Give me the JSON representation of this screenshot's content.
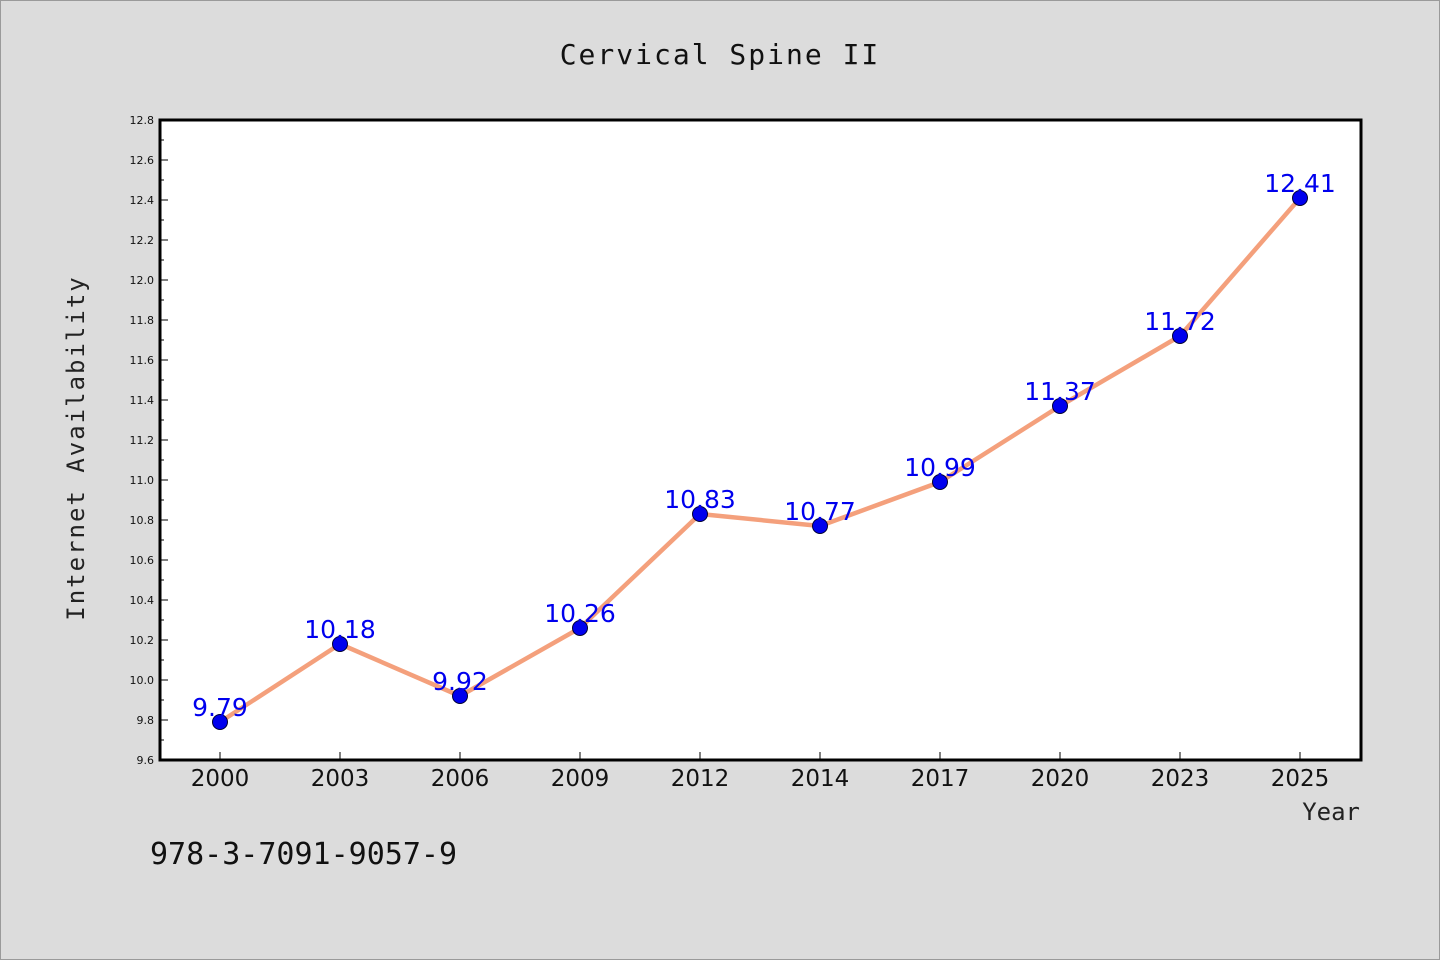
{
  "chart_data": {
    "type": "line",
    "title": "Cervical Spine II",
    "xlabel": "Year",
    "ylabel": "Internet Availability",
    "categories": [
      "2000",
      "2003",
      "2006",
      "2009",
      "2012",
      "2014",
      "2017",
      "2020",
      "2023",
      "2025"
    ],
    "series": [
      {
        "values": [
          9.79,
          10.18,
          9.92,
          10.26,
          10.83,
          10.77,
          10.99,
          11.37,
          11.72,
          12.41
        ],
        "data_labels": [
          "9.79",
          "10.18",
          "9.92",
          "10.26",
          "10.83",
          "10.77",
          "10.99",
          "11.37",
          "11.72",
          "12.41"
        ]
      }
    ],
    "ylim": [
      9.6,
      12.8
    ],
    "yticks": [
      "9.6",
      "9.8",
      "10.0",
      "10.2",
      "10.4",
      "10.6",
      "10.8",
      "11.0",
      "11.2",
      "11.4",
      "11.6",
      "11.8",
      "12.0",
      "12.2",
      "12.4",
      "12.6",
      "12.8"
    ],
    "grid": false,
    "legend": "none",
    "colors": {
      "line": "#f4a07c",
      "marker": "#0000ee",
      "data_label": "#0000ee",
      "plot_background": "#ffffff",
      "figure_background": "#dcdcdc"
    }
  },
  "footnote": "978-3-7091-9057-9"
}
